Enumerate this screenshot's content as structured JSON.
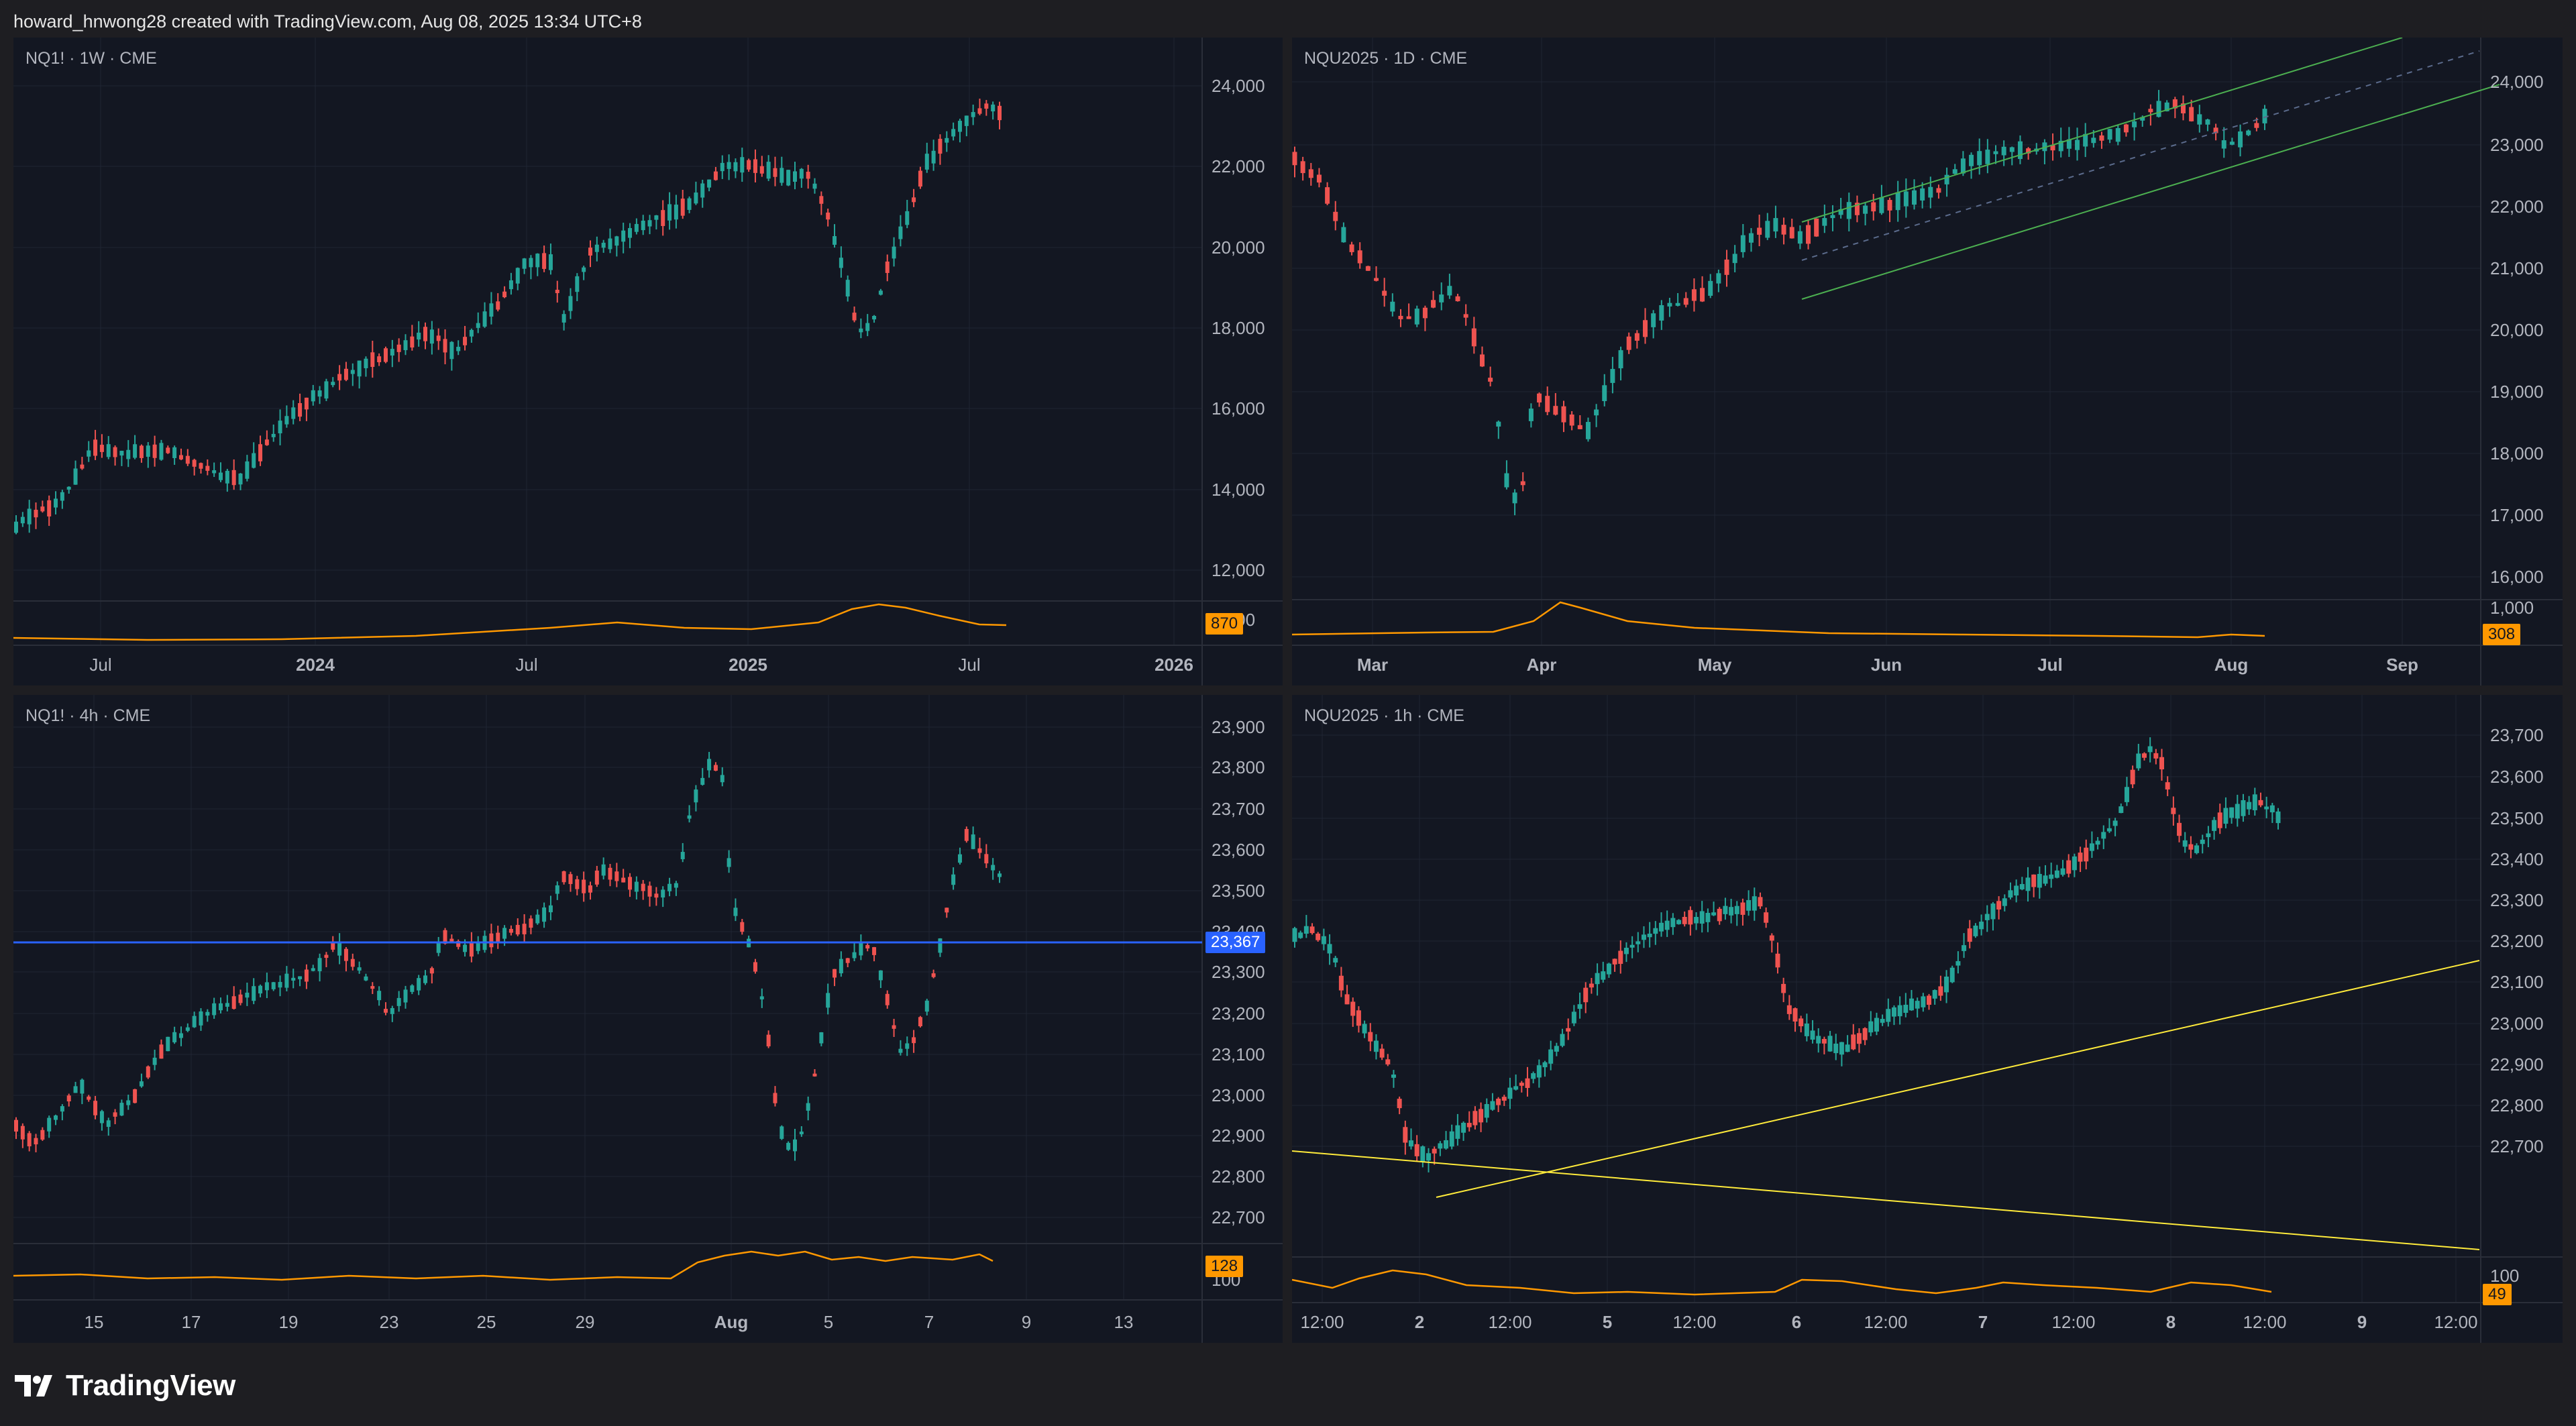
{
  "header": {
    "text": "howard_hnwong28 created with TradingView.com, Aug 08, 2025 13:34 UTC+8"
  },
  "footer": {
    "brand": "TradingView"
  },
  "colors": {
    "background": "#131722",
    "frame": "#1e1e22",
    "up": "#26a69a",
    "down": "#ef5350",
    "indicator": "#ff9800",
    "channel": "#4caf50",
    "trendline": "#ffeb3b",
    "hline": "#2962ff"
  },
  "panes": [
    {
      "id": "tl",
      "label": "NQ1! · 1W · CME",
      "price_ticks": [
        "24,000",
        "22,000",
        "20,000",
        "18,000",
        "16,000",
        "14,000",
        "12,000"
      ],
      "indicator_tick": "1,000",
      "indicator_badge": "870",
      "time_labels": [
        {
          "text": "Jul",
          "bold": false
        },
        {
          "text": "2024",
          "bold": true
        },
        {
          "text": "Jul",
          "bold": false
        },
        {
          "text": "2025",
          "bold": true
        },
        {
          "text": "Jul",
          "bold": false
        },
        {
          "text": "2026",
          "bold": true
        }
      ]
    },
    {
      "id": "tr",
      "label": "NQU2025 · 1D · CME",
      "price_ticks": [
        "24,000",
        "23,000",
        "22,000",
        "21,000",
        "20,000",
        "19,000",
        "18,000",
        "17,000",
        "16,000"
      ],
      "indicator_tick": "1,000",
      "indicator_badge": "308",
      "time_labels": [
        {
          "text": "Mar",
          "bold": true
        },
        {
          "text": "Apr",
          "bold": true
        },
        {
          "text": "May",
          "bold": true
        },
        {
          "text": "Jun",
          "bold": true
        },
        {
          "text": "Jul",
          "bold": true
        },
        {
          "text": "Aug",
          "bold": true
        },
        {
          "text": "Sep",
          "bold": true
        }
      ]
    },
    {
      "id": "bl",
      "label": "NQ1! · 4h · CME",
      "price_ticks": [
        "23,900",
        "23,800",
        "23,700",
        "23,600",
        "23,500",
        "23,400",
        "23,300",
        "23,200",
        "23,100",
        "23,000",
        "22,900",
        "22,800",
        "22,700"
      ],
      "hline_badge": "23,367",
      "indicator_tick": "100",
      "indicator_badge": "128",
      "time_labels": [
        {
          "text": "15",
          "bold": false
        },
        {
          "text": "17",
          "bold": false
        },
        {
          "text": "19",
          "bold": false
        },
        {
          "text": "23",
          "bold": false
        },
        {
          "text": "25",
          "bold": false
        },
        {
          "text": "29",
          "bold": false
        },
        {
          "text": "Aug",
          "bold": true
        },
        {
          "text": "5",
          "bold": false
        },
        {
          "text": "7",
          "bold": false
        },
        {
          "text": "9",
          "bold": false
        },
        {
          "text": "13",
          "bold": false
        }
      ]
    },
    {
      "id": "br",
      "label": "NQU2025 · 1h · CME",
      "price_ticks": [
        "23,700",
        "23,600",
        "23,500",
        "23,400",
        "23,300",
        "23,200",
        "23,100",
        "23,000",
        "22,900",
        "22,800",
        "22,700"
      ],
      "indicator_tick": "100",
      "indicator_badge": "49",
      "time_labels": [
        {
          "text": "12:00",
          "bold": false
        },
        {
          "text": "2",
          "bold": true
        },
        {
          "text": "12:00",
          "bold": false
        },
        {
          "text": "5",
          "bold": true
        },
        {
          "text": "12:00",
          "bold": false
        },
        {
          "text": "6",
          "bold": true
        },
        {
          "text": "12:00",
          "bold": false
        },
        {
          "text": "7",
          "bold": true
        },
        {
          "text": "12:00",
          "bold": false
        },
        {
          "text": "8",
          "bold": true
        },
        {
          "text": "12:00",
          "bold": false
        },
        {
          "text": "9",
          "bold": true
        },
        {
          "text": "12:00",
          "bold": false
        }
      ]
    }
  ]
}
